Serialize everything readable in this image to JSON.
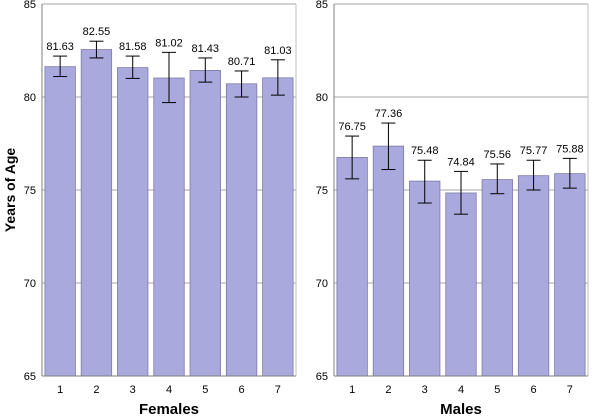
{
  "chart_data": {
    "type": "bar",
    "ylabel": "Years of Age",
    "ylim": [
      65,
      85
    ],
    "yticks": [
      65,
      70,
      75,
      80,
      85
    ],
    "grid": "horizontal",
    "bar_color": "#a9a9dd",
    "bar_stroke": "#7a7aa8",
    "grid_color": "#a6a6a6",
    "panels": [
      {
        "title": "Females",
        "categories": [
          "1",
          "2",
          "3",
          "4",
          "5",
          "6",
          "7"
        ],
        "values": [
          81.63,
          82.55,
          81.58,
          81.02,
          81.43,
          80.71,
          81.03
        ],
        "labels": [
          "81.63",
          "82.55",
          "81.58",
          "81.02",
          "81.43",
          "80.71",
          "81.03"
        ],
        "error_low": [
          81.1,
          82.1,
          81.0,
          79.7,
          80.8,
          80.0,
          80.1
        ],
        "error_high": [
          82.2,
          83.0,
          82.2,
          82.4,
          82.1,
          81.4,
          82.0
        ]
      },
      {
        "title": "Males",
        "categories": [
          "1",
          "2",
          "3",
          "4",
          "5",
          "6",
          "7"
        ],
        "values": [
          76.75,
          77.36,
          75.48,
          74.84,
          75.56,
          75.77,
          75.88
        ],
        "labels": [
          "76.75",
          "77.36",
          "75.48",
          "74.84",
          "75.56",
          "75.77",
          "75.88"
        ],
        "error_low": [
          75.6,
          76.1,
          74.3,
          73.7,
          74.8,
          75.0,
          75.1
        ],
        "error_high": [
          77.9,
          78.6,
          76.6,
          76.0,
          76.4,
          76.6,
          76.7
        ]
      }
    ]
  }
}
